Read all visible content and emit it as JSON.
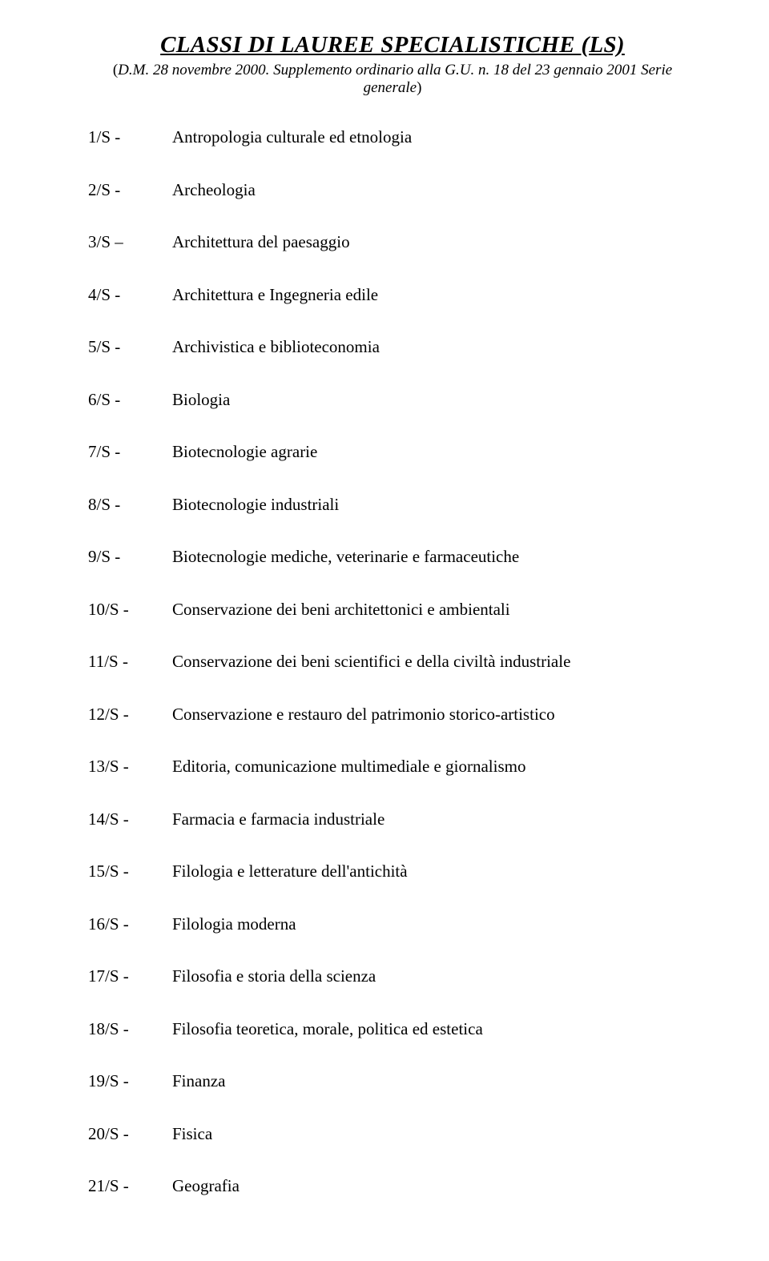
{
  "header": {
    "title": "CLASSI DI LAUREE SPECIALISTICHE (LS)",
    "subtitle_prefix": "(",
    "subtitle_dm": "D.M. 28 novembre 2000. Supplemento ordinario alla G.U. n. 18 del 23 gennaio 2001 Serie generale",
    "subtitle_suffix": ")"
  },
  "items": [
    {
      "code": "1/S -",
      "desc": "Antropologia culturale ed etnologia"
    },
    {
      "code": "2/S -",
      "desc": "Archeologia"
    },
    {
      "code": "3/S –",
      "desc": "Architettura del paesaggio"
    },
    {
      "code": "4/S -",
      "desc": "Architettura e Ingegneria edile"
    },
    {
      "code": "5/S -",
      "desc": "Archivistica e biblioteconomia"
    },
    {
      "code": "6/S -",
      "desc": "Biologia"
    },
    {
      "code": "7/S -",
      "desc": "Biotecnologie agrarie"
    },
    {
      "code": "8/S -",
      "desc": "Biotecnologie industriali"
    },
    {
      "code": "9/S -",
      "desc": "Biotecnologie mediche, veterinarie e farmaceutiche"
    },
    {
      "code": "10/S -",
      "desc": "Conservazione dei beni architettonici e ambientali"
    },
    {
      "code": "11/S -",
      "desc": "Conservazione dei beni scientifici e della civiltà industriale"
    },
    {
      "code": "12/S -",
      "desc": "Conservazione e restauro del patrimonio storico-artistico"
    },
    {
      "code": "13/S -",
      "desc": "Editoria, comunicazione multimediale e giornalismo"
    },
    {
      "code": "14/S -",
      "desc": "Farmacia e farmacia industriale"
    },
    {
      "code": "15/S -",
      "desc": "Filologia e letterature dell'antichità"
    },
    {
      "code": "16/S -",
      "desc": "Filologia moderna"
    },
    {
      "code": "17/S -",
      "desc": "Filosofia e storia della scienza"
    },
    {
      "code": "18/S -",
      "desc": "Filosofia teoretica, morale, politica ed estetica"
    },
    {
      "code": "19/S -",
      "desc": "Finanza"
    },
    {
      "code": "20/S -",
      "desc": "Fisica"
    },
    {
      "code": "21/S -",
      "desc": "Geografia"
    }
  ]
}
